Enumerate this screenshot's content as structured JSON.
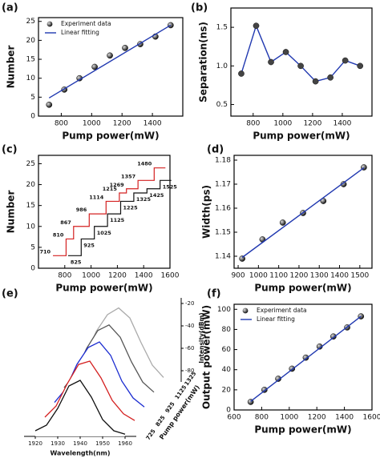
{
  "chart_data": [
    {
      "type": "scatter",
      "panel": "(a)",
      "xlabel": "Pump power(mW)",
      "ylabel": "Number",
      "xlim": [
        650,
        1600
      ],
      "ylim": [
        0,
        26
      ],
      "xticks": [
        800,
        1000,
        1200,
        1400
      ],
      "yticks": [
        0,
        5,
        10,
        15,
        20,
        25
      ],
      "legend": "upper left",
      "series": [
        {
          "name": "Experiment data",
          "color": "#222222",
          "mode": "markers",
          "x": [
            720,
            820,
            920,
            1020,
            1120,
            1220,
            1320,
            1420,
            1520
          ],
          "values": [
            3,
            7,
            10,
            13,
            16,
            18,
            19,
            21,
            24
          ]
        },
        {
          "name": "Linear fitting",
          "color": "#2038b0",
          "mode": "lines",
          "x": [
            720,
            1520
          ],
          "values": [
            4.8,
            24
          ]
        }
      ]
    },
    {
      "type": "line",
      "panel": "(b)",
      "xlabel": "Pump power(mW)",
      "ylabel": "Separation(ns)",
      "xlim": [
        650,
        1600
      ],
      "ylim": [
        0.35,
        1.75
      ],
      "xticks": [
        800,
        1000,
        1200,
        1400
      ],
      "yticks": [
        {
          "value": 0.5,
          "label": "0.5"
        },
        {
          "value": 1,
          "label": "1.0"
        },
        {
          "value": 1.5,
          "label": "1.5"
        }
      ],
      "series": [
        {
          "color": "#2038b0",
          "mode": "lines+markers",
          "x": [
            720,
            820,
            920,
            1020,
            1120,
            1220,
            1320,
            1420,
            1520
          ],
          "values": [
            0.9,
            1.52,
            1.05,
            1.18,
            1.0,
            0.8,
            0.85,
            1.07,
            1.0
          ]
        }
      ]
    },
    {
      "type": "step",
      "panel": "(c)",
      "xlabel": "Pump power(mW)",
      "ylabel": "Number",
      "xlim": [
        600,
        1600
      ],
      "ylim": [
        0,
        27
      ],
      "xticks": [
        800,
        1000,
        1200,
        1400,
        1600
      ],
      "yticks": [
        0,
        5,
        10,
        15,
        20,
        25
      ],
      "series": [
        {
          "color": "#d42020",
          "mode": "step",
          "labels": "above",
          "x": [
            710,
            810,
            867,
            986,
            1114,
            1215,
            1269,
            1357,
            1480
          ],
          "values": [
            3,
            7,
            10,
            13,
            16,
            18,
            19,
            21,
            24
          ]
        },
        {
          "color": "#111111",
          "mode": "step",
          "labels": "below",
          "x": [
            825,
            925,
            1025,
            1125,
            1225,
            1325,
            1425,
            1525
          ],
          "values": [
            3,
            7,
            10,
            13,
            16,
            18,
            19,
            21
          ]
        }
      ]
    },
    {
      "type": "scatter",
      "panel": "(d)",
      "xlabel": "Pump power(mW)",
      "ylabel": "Width(ps)",
      "xlim": [
        880,
        1560
      ],
      "ylim": [
        1.135,
        1.182
      ],
      "xticks": [
        900,
        1000,
        1100,
        1200,
        1300,
        1400,
        1500
      ],
      "yticks": [
        1.14,
        1.15,
        1.16,
        1.17,
        1.18
      ],
      "series": [
        {
          "color": "#222222",
          "mode": "markers",
          "x": [
            920,
            1020,
            1120,
            1220,
            1320,
            1420,
            1520
          ],
          "values": [
            1.139,
            1.147,
            1.154,
            1.158,
            1.163,
            1.17,
            1.177
          ]
        },
        {
          "color": "#2038b0",
          "mode": "lines",
          "x": [
            920,
            1520
          ],
          "values": [
            1.1395,
            1.1768
          ]
        }
      ]
    },
    {
      "type": "waterfall",
      "panel": "(e)",
      "xlabel": "Wavelength(nm)",
      "zlabel": "Intensity(dBm)",
      "depthlabel": "Pump power(mW)",
      "xlim": [
        1915,
        1965
      ],
      "xticks": [
        1920,
        1930,
        1940,
        1950,
        1960
      ],
      "zlim": [
        -90,
        -15
      ],
      "zticks": [
        -20,
        -40,
        -60,
        -80
      ],
      "x": [
        1920,
        1925,
        1930,
        1935,
        1940,
        1945,
        1950,
        1955,
        1960
      ],
      "series": [
        {
          "name": "725",
          "color": "#111111",
          "values": [
            -85,
            -80,
            -65,
            -45,
            -40,
            -55,
            -75,
            -85,
            -88
          ]
        },
        {
          "name": "825",
          "color": "#d42020",
          "values": [
            -85,
            -75,
            -55,
            -38,
            -35,
            -50,
            -70,
            -82,
            -88
          ]
        },
        {
          "name": "925",
          "color": "#1a2bd0",
          "values": [
            -84,
            -72,
            -50,
            -35,
            -30,
            -42,
            -65,
            -80,
            -88
          ]
        },
        {
          "name": "1125",
          "color": "#555555",
          "values": [
            -83,
            -70,
            -48,
            -32,
            -27,
            -38,
            -60,
            -78,
            -87
          ]
        },
        {
          "name": "1325",
          "color": "#aaaaaa",
          "values": [
            -82,
            -68,
            -45,
            -30,
            -24,
            -33,
            -55,
            -75,
            -86
          ]
        }
      ]
    },
    {
      "type": "scatter",
      "panel": "(f)",
      "xlabel": "Pump power(mW)",
      "ylabel": "Output power(mW)",
      "xlim": [
        600,
        1600
      ],
      "ylim": [
        0,
        105
      ],
      "xticks": [
        600,
        800,
        1000,
        1200,
        1400,
        1600
      ],
      "yticks": [
        0,
        20,
        40,
        60,
        80,
        100
      ],
      "legend": "upper left",
      "series": [
        {
          "name": "Experiment data",
          "color": "#222222",
          "mode": "markers",
          "x": [
            720,
            820,
            920,
            1020,
            1120,
            1220,
            1320,
            1420,
            1520
          ],
          "values": [
            8,
            20,
            31,
            41,
            52,
            63,
            73,
            82,
            93
          ]
        },
        {
          "name": "Linear fitting",
          "color": "#2038b0",
          "mode": "lines",
          "x": [
            720,
            1520
          ],
          "values": [
            8.5,
            93
          ]
        }
      ]
    }
  ]
}
